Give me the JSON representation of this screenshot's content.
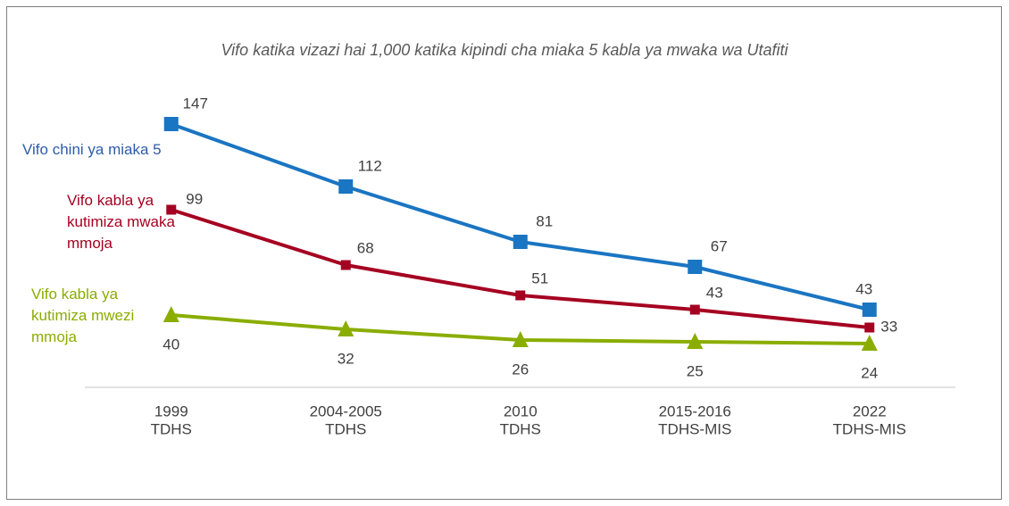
{
  "chart_data": {
    "type": "line",
    "title": "Vifo katika vizazi hai 1,000 katika kipindi cha miaka 5 kabla ya mwaka wa Utafiti",
    "categories": [
      [
        "1999",
        "TDHS"
      ],
      [
        "2004-2005",
        "TDHS"
      ],
      [
        "2010",
        "TDHS"
      ],
      [
        "2015-2016",
        "TDHS-MIS"
      ],
      [
        "2022",
        "TDHS-MIS"
      ]
    ],
    "ylim": [
      0,
      150
    ],
    "series": [
      {
        "name": "Vifo chini ya miaka 5",
        "color": "#1a75c2",
        "marker": "square",
        "values": [
          147,
          112,
          81,
          67,
          43
        ]
      },
      {
        "name": "Vifo kabla ya kutimiza mwaka mmoja",
        "color": "#a50021",
        "marker": "square",
        "values": [
          99,
          68,
          51,
          43,
          33
        ]
      },
      {
        "name": "Vifo kabla ya kutimiza mwezi mmoja",
        "color": "#8aad00",
        "marker": "triangle",
        "values": [
          40,
          32,
          26,
          25,
          24
        ]
      }
    ]
  }
}
